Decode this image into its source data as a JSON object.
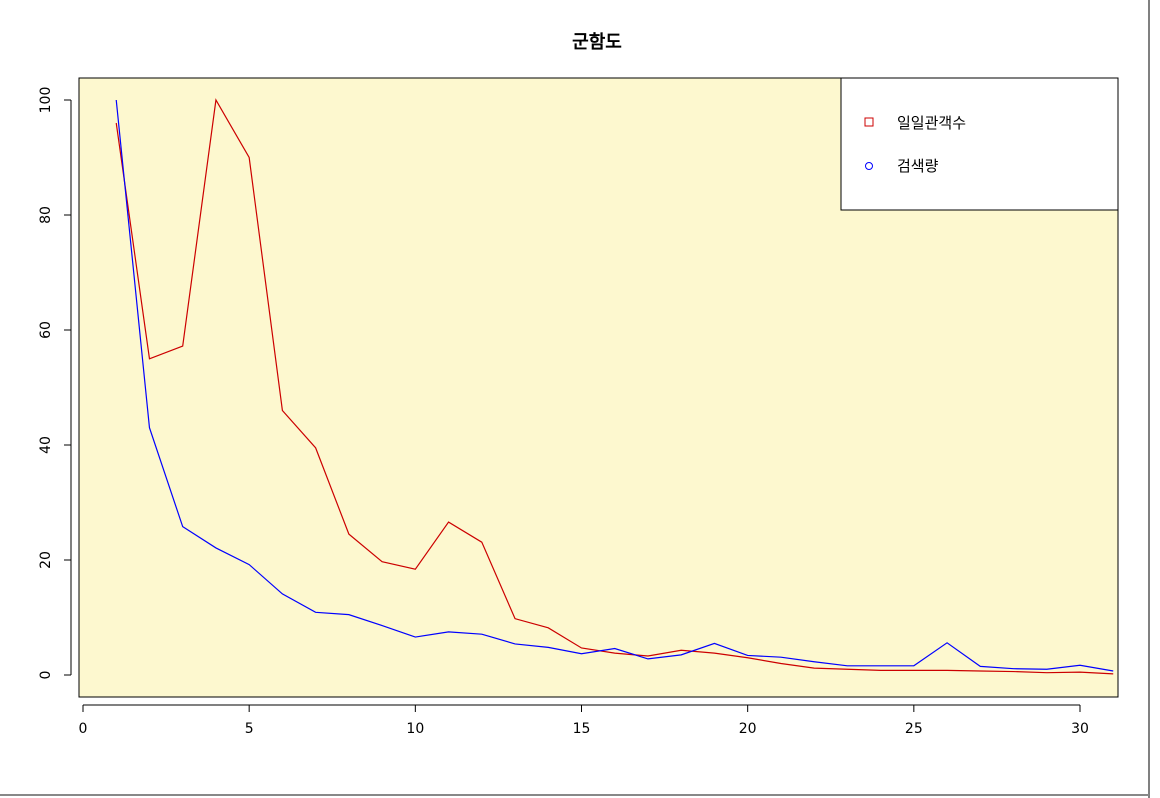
{
  "chart_data": {
    "type": "line",
    "title": "군함도",
    "xlabel": "",
    "ylabel": "",
    "xlim": [
      0,
      31
    ],
    "ylim": [
      0,
      100
    ],
    "x_ticks": [
      "0",
      "5",
      "10",
      "15",
      "20",
      "25",
      "30"
    ],
    "y_ticks": [
      "0",
      "20",
      "40",
      "60",
      "80",
      "100"
    ],
    "background_color": "#fdf8cf",
    "grid": false,
    "legend_position": "top-right",
    "x": [
      1,
      2,
      3,
      4,
      5,
      6,
      7,
      8,
      9,
      10,
      11,
      12,
      13,
      14,
      15,
      16,
      17,
      18,
      19,
      20,
      21,
      22,
      23,
      24,
      25,
      26,
      27,
      28,
      29,
      30,
      31
    ],
    "series": [
      {
        "name": "일일관객수",
        "color": "#cc0000",
        "marker": "square",
        "values": [
          96,
          55,
          57.2,
          100,
          90,
          46,
          39.5,
          24.5,
          19.7,
          18.4,
          26.6,
          23.1,
          9.8,
          8.2,
          4.7,
          3.8,
          3.3,
          4.3,
          3.8,
          3.0,
          2.0,
          1.2,
          1.0,
          0.8,
          0.8,
          0.8,
          0.7,
          0.6,
          0.4,
          0.5,
          0.2
        ]
      },
      {
        "name": "검색량",
        "color": "#0000ff",
        "marker": "circle",
        "values": [
          100,
          43,
          25.8,
          22.1,
          19.2,
          14.1,
          10.9,
          10.5,
          8.6,
          6.6,
          7.5,
          7.1,
          5.4,
          4.8,
          3.7,
          4.6,
          2.8,
          3.5,
          5.5,
          3.4,
          3.1,
          2.3,
          1.6,
          1.6,
          1.6,
          5.6,
          1.5,
          1.1,
          1.0,
          1.7,
          0.7
        ]
      }
    ]
  }
}
